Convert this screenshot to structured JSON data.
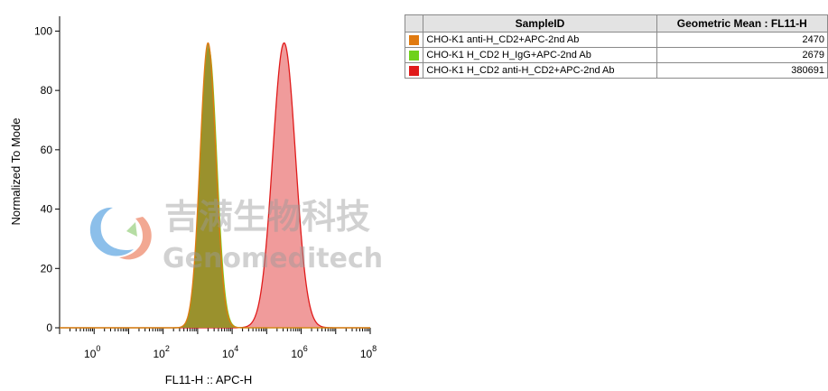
{
  "chart_data": {
    "type": "area",
    "xlabel": "FL11-H :: APC-H",
    "ylabel": "Normalized To Mode",
    "xscale": "log",
    "xlim": [
      0.1,
      100000000.0
    ],
    "ylim": [
      0,
      105
    ],
    "xticks": [
      {
        "base": "10",
        "exp": "0"
      },
      {
        "base": "10",
        "exp": "2"
      },
      {
        "base": "10",
        "exp": "4"
      },
      {
        "base": "10",
        "exp": "6"
      },
      {
        "base": "10",
        "exp": "8"
      }
    ],
    "yticks": [
      "0",
      "20",
      "40",
      "60",
      "80",
      "100"
    ],
    "series": [
      {
        "name": "CHO-K1 anti-H_CD2+APC-2nd Ab",
        "color": "#e07a10",
        "fill": "#9a8f2a",
        "peak_x": 2000,
        "log_sigma": 0.23,
        "peak_y": 96
      },
      {
        "name": "CHO-K1 H_CD2 H_IgG+APC-2nd Ab",
        "color": "#6fd11c",
        "fill": "#8f9632",
        "peak_x": 2100,
        "log_sigma": 0.23,
        "peak_y": 94
      },
      {
        "name": "CHO-K1 H_CD2 anti-H_CD2+APC-2nd Ab",
        "color": "#e01b1b",
        "fill": "#ee9090",
        "peak_x": 320000,
        "log_sigma": 0.33,
        "peak_y": 96
      }
    ]
  },
  "legend_table": {
    "headers": [
      "SampleID",
      "Geometric Mean : FL11-H"
    ],
    "rows": [
      {
        "color": "#e07a10",
        "sample": "CHO-K1 anti-H_CD2+APC-2nd Ab",
        "value": "2470"
      },
      {
        "color": "#6fd11c",
        "sample": "CHO-K1 H_CD2 H_IgG+APC-2nd Ab",
        "value": "2679"
      },
      {
        "color": "#e01b1b",
        "sample": "CHO-K1 H_CD2 anti-H_CD2+APC-2nd Ab",
        "value": "380691"
      }
    ]
  },
  "watermark": {
    "cn": "吉满生物科技",
    "en": "Genomeditech"
  }
}
